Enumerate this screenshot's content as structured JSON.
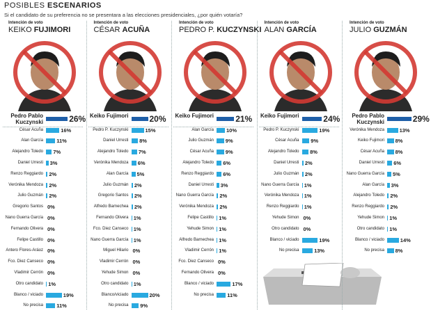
{
  "header": {
    "title_light": "POSIBLES",
    "title_bold": "ESCENARIOS",
    "question": "Si el candidato de su preferencia no se presentara a las elecciones presidenciales, ¿por quién votaría?"
  },
  "chart_data": [
    {
      "type": "bar",
      "subtitle": "Intención de voto",
      "first_name": "KEIKO",
      "last_name": "FUJIMORI",
      "color": "#29a9e0",
      "highlight_color": "#1f5fa8",
      "categories": [
        "Pedro Pablo Kuczynski",
        "César Acuña",
        "Alan García",
        "Alejandro Toledo",
        "Daniel Urresti",
        "Renzo Reggiardo",
        "Verónika Mendoza",
        "Julio Guzmán",
        "Gregorio Santos",
        "Nano Guerra García",
        "Fernando Olivera",
        "Felipe Castillo",
        "Antero Flores-Aráoz",
        "Fco. Diez Canseco",
        "Vladimir Cerrón",
        "Otro candidato",
        "Blanco / viciado",
        "No precisa"
      ],
      "values": [
        26,
        16,
        11,
        7,
        3,
        2,
        2,
        2,
        0,
        0,
        0,
        0,
        0,
        0,
        0,
        1,
        19,
        11
      ],
      "value_labels": [
        "26%",
        "16%",
        "11%",
        "7%",
        "3%",
        "2%",
        "2%",
        "2%",
        "0%",
        "0%",
        "0%",
        "0%",
        "0%",
        "0%",
        "0%",
        "1%",
        "19%",
        "11%"
      ]
    },
    {
      "type": "bar",
      "subtitle": "Intención de voto",
      "first_name": "CÉSAR",
      "last_name": "ACUÑA",
      "color": "#29a9e0",
      "highlight_color": "#1f5fa8",
      "categories": [
        "Keiko Fujimori",
        "Pedro P. Kuczynski",
        "Daniel Urresti",
        "Alejandro Toledo",
        "Verónika Mendoza",
        "Alan García",
        "Julio Guzmán",
        "Gregorio Santos",
        "Alfredo Barnechea",
        "Fernando Olivera",
        "Fco. Diez Canseco",
        "Nano Guerra García",
        "Miguel Hilario",
        "Vladimir Cerrón",
        "Yehude Simon",
        "Otro candidato",
        "Blanco/viciado",
        "No precisa"
      ],
      "values": [
        20,
        15,
        8,
        7,
        6,
        5,
        2,
        2,
        2,
        1,
        1,
        1,
        0,
        0,
        0,
        1,
        20,
        9
      ],
      "value_labels": [
        "20%",
        "15%",
        "8%",
        "7%",
        "6%",
        "5%",
        "2%",
        "2%",
        "2%",
        "1%",
        "1%",
        "1%",
        "0%",
        "0%",
        "0%",
        "1%",
        "20%",
        "9%"
      ]
    },
    {
      "type": "bar",
      "subtitle": "Intención de voto",
      "first_name": "PEDRO P.",
      "last_name": "KUCZYNSKI",
      "color": "#29a9e0",
      "highlight_color": "#1f5fa8",
      "categories": [
        "Keiko Fujimori",
        "Alan García",
        "Julio Guzmán",
        "César Acuña",
        "Alejandro Toledo",
        "Renzo Reggiardo",
        "Daniel Urresti",
        "Nano Guerra García",
        "Verónika Mendoza",
        "Felipe Castillo",
        "Yehude Simon",
        "Alfredo Barnechea",
        "Vladimir Cerrón",
        "Fco. Diez Canseco",
        "Fernando Olivera",
        "Blanco / viciado",
        "No precisa"
      ],
      "values": [
        21,
        10,
        9,
        9,
        6,
        6,
        3,
        2,
        2,
        1,
        1,
        1,
        1,
        0,
        0,
        17,
        11
      ],
      "value_labels": [
        "21%",
        "10%",
        "9%",
        "9%",
        "6%",
        "6%",
        "3%",
        "2%",
        "2%",
        "1%",
        "1%",
        "1%",
        "1%",
        "0%",
        "0%",
        "17%",
        "11%"
      ]
    },
    {
      "type": "bar",
      "subtitle": "Intención de voto",
      "first_name": "ALAN",
      "last_name": "GARCÍA",
      "color": "#29a9e0",
      "highlight_color": "#1f5fa8",
      "categories": [
        "Keiko Fujimori",
        "Pedro P. Kuczynski",
        "César Acuña",
        "Alejandro Toledo",
        "Daniel Urresti",
        "Julio Guzmán",
        "Nano Guerra García",
        "Verónika Mendoza",
        "Renzo Reggiardo",
        "Yehude Simon",
        "Otro candidato",
        "Blanco / viciado",
        "No precisa"
      ],
      "values": [
        24,
        19,
        9,
        8,
        2,
        2,
        1,
        1,
        1,
        0,
        0,
        19,
        13
      ],
      "value_labels": [
        "24%",
        "19%",
        "9%",
        "8%",
        "2%",
        "2%",
        "1%",
        "1%",
        "1%",
        "0%",
        "0%",
        "19%",
        "13%"
      ]
    },
    {
      "type": "bar",
      "subtitle": "Intención de voto",
      "first_name": "JULIO",
      "last_name": "GUZMÁN",
      "color": "#29a9e0",
      "highlight_color": "#1f5fa8",
      "categories": [
        "Pedro Pablo Kuczynski",
        "Verónika Mendoza",
        "Keiko Fujimori",
        "César Acuña",
        "Daniel Urresti",
        "Nano Guerra García",
        "Alan García",
        "Alejandro Toledo",
        "Renzo Reggiardo",
        "Yehude Simon",
        "Otro candidato",
        "Blanco / viciado",
        "No precisa"
      ],
      "values": [
        29,
        13,
        8,
        8,
        6,
        5,
        3,
        2,
        2,
        1,
        1,
        14,
        8
      ],
      "value_labels": [
        "29%",
        "13%",
        "8%",
        "8%",
        "6%",
        "5%",
        "3%",
        "2%",
        "2%",
        "1%",
        "1%",
        "14%",
        "8%"
      ]
    }
  ]
}
